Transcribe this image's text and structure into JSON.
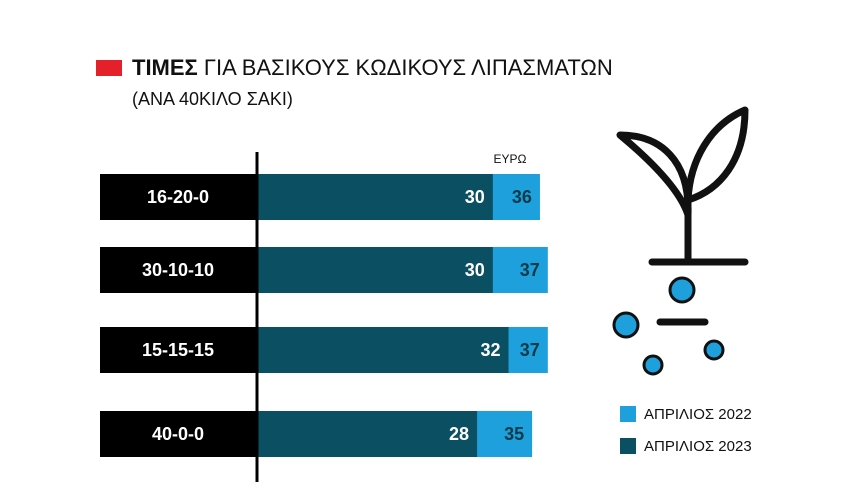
{
  "chart_data": {
    "type": "overlap-bar",
    "title": [
      "ΤΙΜΕΣ",
      "ΓΙΑ ΒΑΣΙΚΟΥΣ ΚΩΔΙΚΟΥΣ ΛΙΠΑΣΜΑΤΩΝ"
    ],
    "subtitle": "(ΑΝΑ 40ΚΙΛΟ ΣΑΚΙ)",
    "unit_label": "ΕΥΡΩ",
    "categories": [
      "16-20-0",
      "30-10-10",
      "15-15-15",
      "40-0-0"
    ],
    "series": [
      {
        "name": "ΑΠΡΙΛΙΟΣ 2022",
        "color": "#1ea0dc",
        "values": [
          36,
          37,
          37,
          35
        ]
      },
      {
        "name": "ΑΠΡΙΛΙΟΣ 2023",
        "color": "#0b4f62",
        "values": [
          30,
          30,
          32,
          28
        ]
      }
    ]
  }
}
